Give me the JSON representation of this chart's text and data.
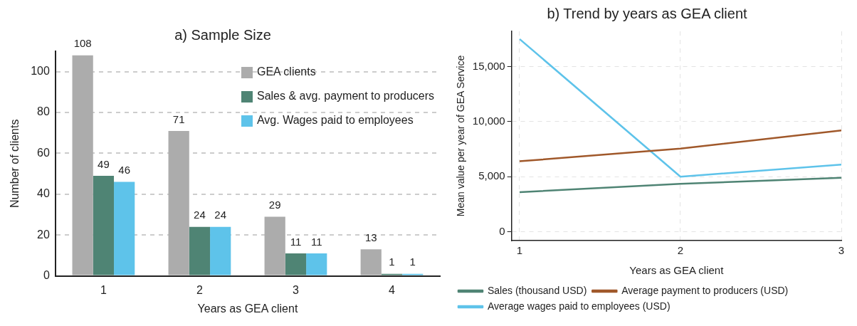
{
  "chart_data": [
    {
      "type": "bar",
      "title": "a) Sample Size",
      "xlabel": "Years as GEA client",
      "ylabel": "Number of clients",
      "categories": [
        "1",
        "2",
        "3",
        "4"
      ],
      "series": [
        {
          "name": "GEA clients",
          "color": "#acacac",
          "values": [
            108,
            71,
            29,
            13
          ]
        },
        {
          "name": "Sales & avg. payment to producers",
          "color": "#4f8474",
          "values": [
            49,
            24,
            11,
            1
          ]
        },
        {
          "name": "Avg. Wages paid to employees",
          "color": "#5ec3ea",
          "values": [
            46,
            24,
            11,
            1
          ]
        }
      ],
      "ylim": [
        0,
        110
      ],
      "yticks": [
        0,
        20,
        40,
        60,
        80,
        100
      ],
      "grid": "y",
      "legend": "top right",
      "data_labels": true
    },
    {
      "type": "line",
      "title": "b) Trend by years as GEA client",
      "xlabel": "Years as GEA client",
      "ylabel": "Mean value per year of GEA Service",
      "x": [
        1,
        2,
        3
      ],
      "series": [
        {
          "name": "Sales (thousand USD)",
          "color": "#4f8474",
          "values": [
            3600,
            4350,
            4900
          ]
        },
        {
          "name": "Average payment to producers (USD)",
          "color": "#a0582a",
          "values": [
            6400,
            7550,
            9200
          ]
        },
        {
          "name": "Average wages paid to employees (USD)",
          "color": "#5ec3ea",
          "values": [
            17500,
            5000,
            6100
          ]
        }
      ],
      "xlim": [
        0.95,
        3
      ],
      "xticks": [
        1,
        2,
        3
      ],
      "ylim": [
        -800,
        18200
      ],
      "yticks": [
        0,
        {
          "value": 5000,
          "label": "5,000"
        },
        {
          "value": 10000,
          "label": "10,000"
        },
        {
          "value": 15000,
          "label": "15,000"
        }
      ],
      "grid": true,
      "legend": "bottom",
      "marker": "none",
      "line_style": "solid"
    }
  ]
}
